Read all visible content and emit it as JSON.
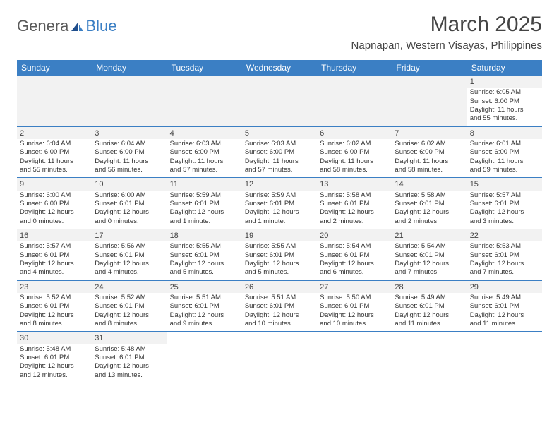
{
  "logo": {
    "part1": "Genera",
    "part2": "Blue"
  },
  "title": "March 2025",
  "location": "Napnapan, Western Visayas, Philippines",
  "colors": {
    "header_bg": "#3b7fc4",
    "header_fg": "#ffffff",
    "shade_bg": "#f2f2f2",
    "text": "#333333",
    "title_text": "#444444"
  },
  "day_headers": [
    "Sunday",
    "Monday",
    "Tuesday",
    "Wednesday",
    "Thursday",
    "Friday",
    "Saturday"
  ],
  "weeks": [
    [
      null,
      null,
      null,
      null,
      null,
      null,
      {
        "n": "1",
        "sr": "Sunrise: 6:05 AM",
        "ss": "Sunset: 6:00 PM",
        "d1": "Daylight: 11 hours",
        "d2": "and 55 minutes."
      }
    ],
    [
      {
        "n": "2",
        "sr": "Sunrise: 6:04 AM",
        "ss": "Sunset: 6:00 PM",
        "d1": "Daylight: 11 hours",
        "d2": "and 55 minutes."
      },
      {
        "n": "3",
        "sr": "Sunrise: 6:04 AM",
        "ss": "Sunset: 6:00 PM",
        "d1": "Daylight: 11 hours",
        "d2": "and 56 minutes."
      },
      {
        "n": "4",
        "sr": "Sunrise: 6:03 AM",
        "ss": "Sunset: 6:00 PM",
        "d1": "Daylight: 11 hours",
        "d2": "and 57 minutes."
      },
      {
        "n": "5",
        "sr": "Sunrise: 6:03 AM",
        "ss": "Sunset: 6:00 PM",
        "d1": "Daylight: 11 hours",
        "d2": "and 57 minutes."
      },
      {
        "n": "6",
        "sr": "Sunrise: 6:02 AM",
        "ss": "Sunset: 6:00 PM",
        "d1": "Daylight: 11 hours",
        "d2": "and 58 minutes."
      },
      {
        "n": "7",
        "sr": "Sunrise: 6:02 AM",
        "ss": "Sunset: 6:00 PM",
        "d1": "Daylight: 11 hours",
        "d2": "and 58 minutes."
      },
      {
        "n": "8",
        "sr": "Sunrise: 6:01 AM",
        "ss": "Sunset: 6:00 PM",
        "d1": "Daylight: 11 hours",
        "d2": "and 59 minutes."
      }
    ],
    [
      {
        "n": "9",
        "sr": "Sunrise: 6:00 AM",
        "ss": "Sunset: 6:00 PM",
        "d1": "Daylight: 12 hours",
        "d2": "and 0 minutes."
      },
      {
        "n": "10",
        "sr": "Sunrise: 6:00 AM",
        "ss": "Sunset: 6:01 PM",
        "d1": "Daylight: 12 hours",
        "d2": "and 0 minutes."
      },
      {
        "n": "11",
        "sr": "Sunrise: 5:59 AM",
        "ss": "Sunset: 6:01 PM",
        "d1": "Daylight: 12 hours",
        "d2": "and 1 minute."
      },
      {
        "n": "12",
        "sr": "Sunrise: 5:59 AM",
        "ss": "Sunset: 6:01 PM",
        "d1": "Daylight: 12 hours",
        "d2": "and 1 minute."
      },
      {
        "n": "13",
        "sr": "Sunrise: 5:58 AM",
        "ss": "Sunset: 6:01 PM",
        "d1": "Daylight: 12 hours",
        "d2": "and 2 minutes."
      },
      {
        "n": "14",
        "sr": "Sunrise: 5:58 AM",
        "ss": "Sunset: 6:01 PM",
        "d1": "Daylight: 12 hours",
        "d2": "and 2 minutes."
      },
      {
        "n": "15",
        "sr": "Sunrise: 5:57 AM",
        "ss": "Sunset: 6:01 PM",
        "d1": "Daylight: 12 hours",
        "d2": "and 3 minutes."
      }
    ],
    [
      {
        "n": "16",
        "sr": "Sunrise: 5:57 AM",
        "ss": "Sunset: 6:01 PM",
        "d1": "Daylight: 12 hours",
        "d2": "and 4 minutes."
      },
      {
        "n": "17",
        "sr": "Sunrise: 5:56 AM",
        "ss": "Sunset: 6:01 PM",
        "d1": "Daylight: 12 hours",
        "d2": "and 4 minutes."
      },
      {
        "n": "18",
        "sr": "Sunrise: 5:55 AM",
        "ss": "Sunset: 6:01 PM",
        "d1": "Daylight: 12 hours",
        "d2": "and 5 minutes."
      },
      {
        "n": "19",
        "sr": "Sunrise: 5:55 AM",
        "ss": "Sunset: 6:01 PM",
        "d1": "Daylight: 12 hours",
        "d2": "and 5 minutes."
      },
      {
        "n": "20",
        "sr": "Sunrise: 5:54 AM",
        "ss": "Sunset: 6:01 PM",
        "d1": "Daylight: 12 hours",
        "d2": "and 6 minutes."
      },
      {
        "n": "21",
        "sr": "Sunrise: 5:54 AM",
        "ss": "Sunset: 6:01 PM",
        "d1": "Daylight: 12 hours",
        "d2": "and 7 minutes."
      },
      {
        "n": "22",
        "sr": "Sunrise: 5:53 AM",
        "ss": "Sunset: 6:01 PM",
        "d1": "Daylight: 12 hours",
        "d2": "and 7 minutes."
      }
    ],
    [
      {
        "n": "23",
        "sr": "Sunrise: 5:52 AM",
        "ss": "Sunset: 6:01 PM",
        "d1": "Daylight: 12 hours",
        "d2": "and 8 minutes."
      },
      {
        "n": "24",
        "sr": "Sunrise: 5:52 AM",
        "ss": "Sunset: 6:01 PM",
        "d1": "Daylight: 12 hours",
        "d2": "and 8 minutes."
      },
      {
        "n": "25",
        "sr": "Sunrise: 5:51 AM",
        "ss": "Sunset: 6:01 PM",
        "d1": "Daylight: 12 hours",
        "d2": "and 9 minutes."
      },
      {
        "n": "26",
        "sr": "Sunrise: 5:51 AM",
        "ss": "Sunset: 6:01 PM",
        "d1": "Daylight: 12 hours",
        "d2": "and 10 minutes."
      },
      {
        "n": "27",
        "sr": "Sunrise: 5:50 AM",
        "ss": "Sunset: 6:01 PM",
        "d1": "Daylight: 12 hours",
        "d2": "and 10 minutes."
      },
      {
        "n": "28",
        "sr": "Sunrise: 5:49 AM",
        "ss": "Sunset: 6:01 PM",
        "d1": "Daylight: 12 hours",
        "d2": "and 11 minutes."
      },
      {
        "n": "29",
        "sr": "Sunrise: 5:49 AM",
        "ss": "Sunset: 6:01 PM",
        "d1": "Daylight: 12 hours",
        "d2": "and 11 minutes."
      }
    ],
    [
      {
        "n": "30",
        "sr": "Sunrise: 5:48 AM",
        "ss": "Sunset: 6:01 PM",
        "d1": "Daylight: 12 hours",
        "d2": "and 12 minutes."
      },
      {
        "n": "31",
        "sr": "Sunrise: 5:48 AM",
        "ss": "Sunset: 6:01 PM",
        "d1": "Daylight: 12 hours",
        "d2": "and 13 minutes."
      },
      null,
      null,
      null,
      null,
      null
    ]
  ]
}
